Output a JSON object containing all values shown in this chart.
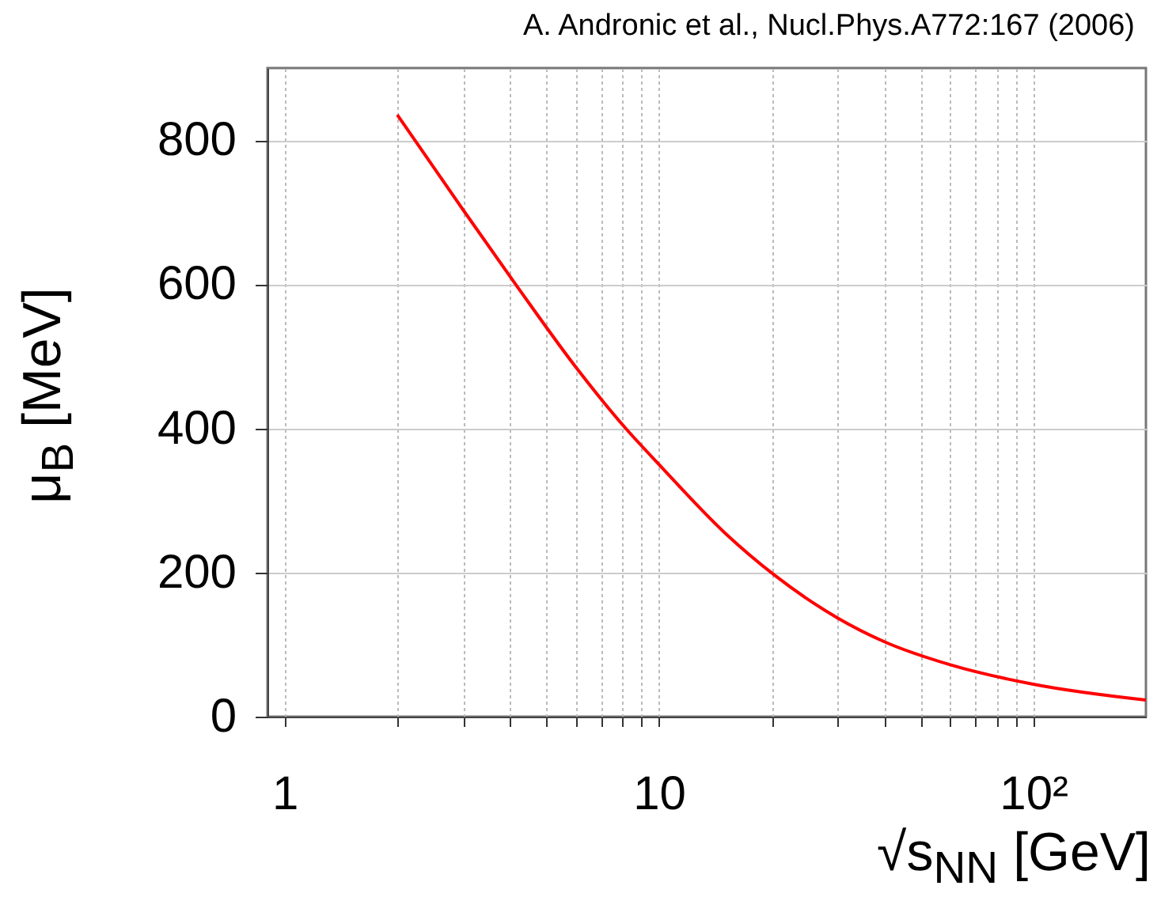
{
  "chart_data": {
    "type": "line",
    "annotations": [
      "A. Andronic et al.,  Nucl.Phys.A772:167 (2006)"
    ],
    "xlabel": "√s$_{NN}$ [GeV]",
    "ylabel": "μ$_{B}$ [MeV]",
    "x": [
      2,
      3,
      4.14,
      6.08,
      8.15,
      10,
      15,
      20.4,
      30,
      40,
      60,
      100,
      200
    ],
    "series": [
      {
        "color": "#ff0000",
        "values": [
          835,
          703,
          600,
          481,
          400,
          350,
          255,
          196,
          137,
          104,
          72,
          45,
          23
        ]
      }
    ],
    "log": "x",
    "xlim": [
      0.9,
      200
    ],
    "ylim": [
      0,
      900
    ],
    "xticks": [
      1,
      {
        "value": 2,
        "label": null
      },
      {
        "value": 3,
        "label": null
      },
      {
        "value": 4,
        "label": null
      },
      {
        "value": 5,
        "label": null
      },
      {
        "value": 6,
        "label": null
      },
      {
        "value": 7,
        "label": null
      },
      {
        "value": 8,
        "label": null
      },
      {
        "value": 9,
        "label": null
      },
      10,
      {
        "value": 20,
        "label": null
      },
      {
        "value": 30,
        "label": null
      },
      {
        "value": 40,
        "label": null
      },
      {
        "value": 50,
        "label": null
      },
      {
        "value": 60,
        "label": null
      },
      {
        "value": 70,
        "label": null
      },
      {
        "value": 80,
        "label": null
      },
      {
        "value": 90,
        "label": null
      },
      {
        "value": 100,
        "label": "10²"
      }
    ],
    "yticks": [
      0,
      200,
      400,
      600,
      800
    ],
    "grid": true
  }
}
